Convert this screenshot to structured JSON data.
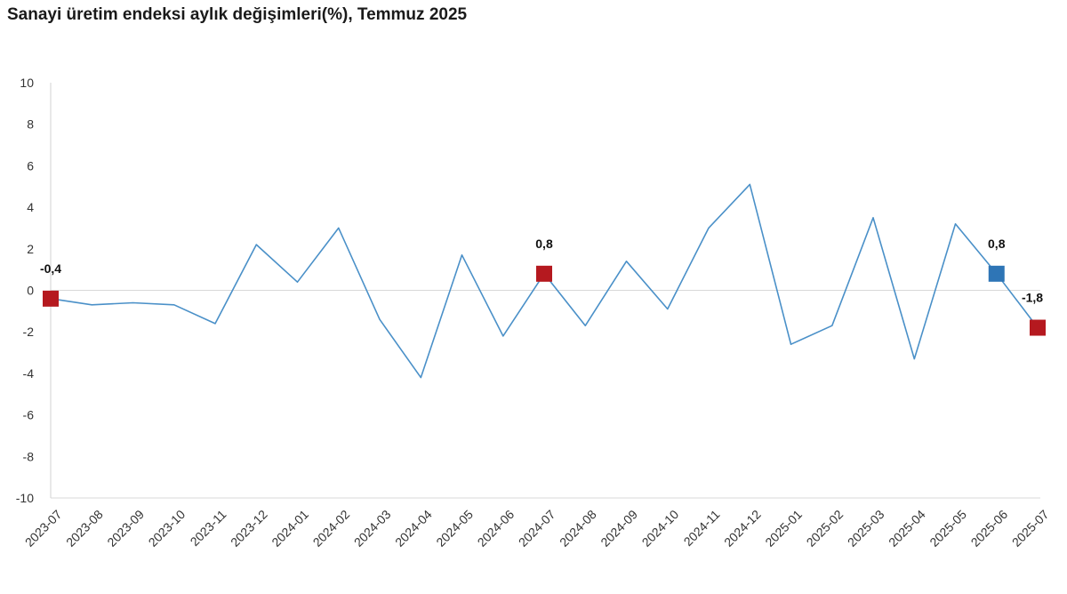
{
  "chart_data": {
    "type": "line",
    "title": "Sanayi üretim endeksi aylık değişimleri(%), Temmuz 2025",
    "xlabel": "",
    "ylabel": "",
    "ylim": [
      -10,
      10
    ],
    "yticks": [
      10,
      8,
      6,
      4,
      2,
      0,
      -2,
      -4,
      -6,
      -8,
      -10
    ],
    "grid": false,
    "categories": [
      "2023-07",
      "2023-08",
      "2023-09",
      "2023-10",
      "2023-11",
      "2023-12",
      "2024-01",
      "2024-02",
      "2024-03",
      "2024-04",
      "2024-05",
      "2024-06",
      "2024-07",
      "2024-08",
      "2024-09",
      "2024-10",
      "2024-11",
      "2024-12",
      "2025-01",
      "2025-02",
      "2025-03",
      "2025-04",
      "2025-05",
      "2025-06",
      "2025-07"
    ],
    "series": [
      {
        "color": "#4a90c8",
        "values": [
          -0.4,
          -0.7,
          -0.6,
          -0.7,
          -1.6,
          2.2,
          0.4,
          3.0,
          -1.4,
          -4.2,
          1.7,
          -2.2,
          0.8,
          -1.7,
          1.4,
          -0.9,
          3.0,
          5.1,
          -2.6,
          -1.7,
          3.5,
          -3.3,
          3.2,
          0.8,
          -1.8
        ]
      }
    ],
    "highlights": [
      {
        "index": 0,
        "label": "-0,4",
        "color": "#b5191f"
      },
      {
        "index": 12,
        "label": "0,8",
        "color": "#b5191f"
      },
      {
        "index": 23,
        "label": "0,8",
        "color": "#2e75b6"
      },
      {
        "index": 24,
        "label": "-1,8",
        "color": "#b5191f"
      }
    ]
  }
}
